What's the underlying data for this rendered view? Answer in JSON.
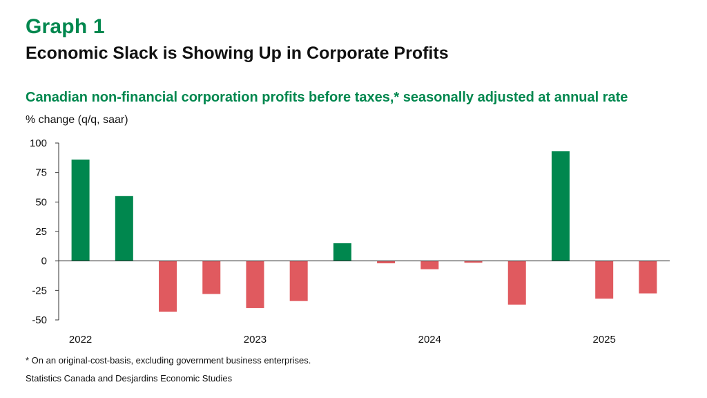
{
  "header": {
    "graph_label": "Graph 1",
    "title": "Economic Slack is Showing Up in Corporate Profits"
  },
  "chart_data": {
    "type": "bar",
    "title": "Canadian non-financial corporation profits before taxes,* seasonally adjusted at annual rate",
    "ylabel": "% change (q/q, saar)",
    "xlabel": "",
    "ylim": [
      -50,
      100
    ],
    "yticks": [
      100,
      75,
      50,
      25,
      0,
      -25,
      -50
    ],
    "categories": [
      "2022 Q1",
      "2022 Q2",
      "2022 Q3",
      "2022 Q4",
      "2023 Q1",
      "2023 Q2",
      "2023 Q3",
      "2023 Q4",
      "2024 Q1",
      "2024 Q2",
      "2024 Q3",
      "2024 Q4",
      "2025 Q1",
      "2025 Q2"
    ],
    "values": [
      86,
      55,
      -43,
      -28,
      -40,
      -34,
      15,
      -2,
      -7,
      -1.5,
      -37,
      93,
      -32,
      -27.5
    ],
    "x_tick_labels": [
      {
        "label": "2022",
        "at_index": 0
      },
      {
        "label": "2023",
        "at_index": 4
      },
      {
        "label": "2024",
        "at_index": 8
      },
      {
        "label": "2025",
        "at_index": 12
      }
    ],
    "colors": {
      "positive": "#00874e",
      "negative": "#e05a5f",
      "axis": "#333333"
    }
  },
  "footnote": "* On an original-cost-basis, excluding government business enterprises.",
  "source": "Statistics Canada and Desjardins Economic Studies"
}
